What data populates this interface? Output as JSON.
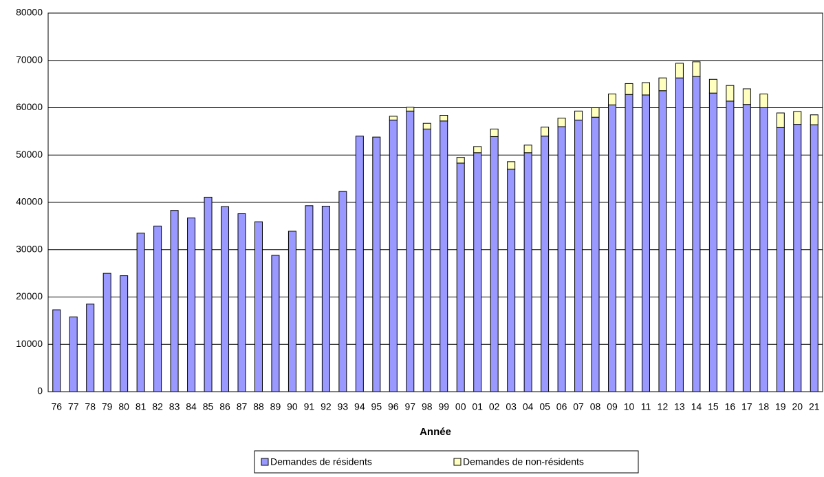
{
  "chart_data": {
    "type": "stacked-bar",
    "x_label": "Année",
    "categories": [
      "76",
      "77",
      "78",
      "79",
      "80",
      "81",
      "82",
      "83",
      "84",
      "85",
      "86",
      "87",
      "88",
      "89",
      "90",
      "91",
      "92",
      "93",
      "94",
      "95",
      "96",
      "97",
      "98",
      "99",
      "00",
      "01",
      "02",
      "03",
      "04",
      "05",
      "06",
      "07",
      "08",
      "09",
      "10",
      "11",
      "12",
      "13",
      "14",
      "15",
      "16",
      "17",
      "18",
      "19",
      "20",
      "21"
    ],
    "series": [
      {
        "name": "Demandes de résidents",
        "color": "#9999ff",
        "values": [
          17300,
          15800,
          18500,
          25000,
          24500,
          33500,
          35000,
          38300,
          36700,
          41100,
          39100,
          37600,
          35900,
          28800,
          33900,
          39300,
          39200,
          42300,
          54000,
          53800,
          57400,
          59300,
          55500,
          57200,
          48300,
          50500,
          53900,
          47000,
          50500,
          54000,
          56000,
          57400,
          58000,
          60600,
          62800,
          62700,
          63600,
          66300,
          66600,
          63100,
          61400,
          60700,
          60000,
          55800,
          56500,
          56400
        ]
      },
      {
        "name": "Demandes de non-résidents",
        "color": "#ffffc0",
        "values": [
          0,
          0,
          0,
          0,
          0,
          0,
          0,
          0,
          0,
          0,
          0,
          0,
          0,
          0,
          0,
          0,
          0,
          0,
          0,
          0,
          800,
          800,
          1200,
          1200,
          1200,
          1300,
          1600,
          1600,
          1600,
          1900,
          1800,
          1900,
          2000,
          2300,
          2300,
          2600,
          2700,
          3100,
          3100,
          2900,
          3300,
          3300,
          2900,
          3100,
          2700,
          2100
        ]
      }
    ],
    "ylim": [
      0,
      80000
    ],
    "yticks": [
      0,
      10000,
      20000,
      30000,
      40000,
      50000,
      60000,
      70000,
      80000
    ],
    "grid": true,
    "legend": "bottom"
  }
}
